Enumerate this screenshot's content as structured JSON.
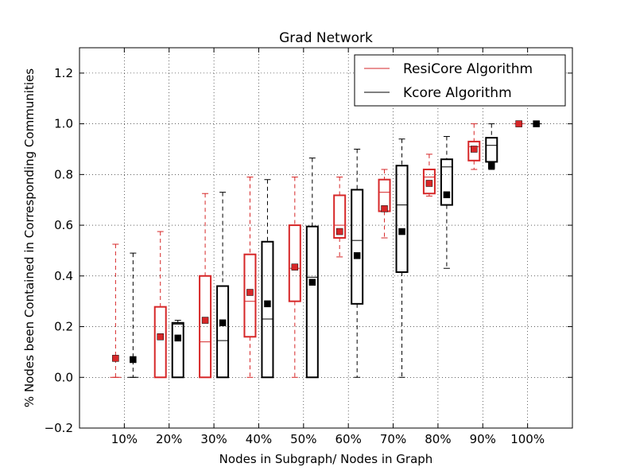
{
  "chart_data": {
    "type": "box",
    "title": "Grad Network",
    "xlabel": "Nodes in Subgraph/ Nodes in Graph",
    "ylabel": "% Nodes been Contained in Corresponding Communities",
    "categories": [
      "10%",
      "20%",
      "30%",
      "40%",
      "50%",
      "60%",
      "70%",
      "80%",
      "90%",
      "100%"
    ],
    "ylim": [
      -0.2,
      1.3
    ],
    "yticks": [
      -0.2,
      0.0,
      0.2,
      0.4,
      0.6,
      0.8,
      1.0,
      1.2
    ],
    "ytick_labels": [
      "−0.2",
      "0.0",
      "0.2",
      "0.4",
      "0.6",
      "0.8",
      "1.0",
      "1.2"
    ],
    "grid": true,
    "legend_position": "top-right",
    "series": [
      {
        "name": "ResiCore Algorithm",
        "color": "#d62728",
        "boxes": [
          {
            "whislo": 0.0,
            "q1": 0.0,
            "med": 0.0,
            "q3": 0.0,
            "whishi": 0.525,
            "mean": 0.075
          },
          {
            "whislo": 0.0,
            "q1": 0.0,
            "med": 0.0,
            "q3": 0.278,
            "whishi": 0.575,
            "mean": 0.16
          },
          {
            "whislo": 0.0,
            "q1": 0.0,
            "med": 0.14,
            "q3": 0.4,
            "whishi": 0.725,
            "mean": 0.225
          },
          {
            "whislo": 0.0,
            "q1": 0.16,
            "med": 0.3,
            "q3": 0.485,
            "whishi": 0.79,
            "mean": 0.335
          },
          {
            "whislo": 0.0,
            "q1": 0.3,
            "med": 0.43,
            "q3": 0.6,
            "whishi": 0.79,
            "mean": 0.435
          },
          {
            "whislo": 0.475,
            "q1": 0.55,
            "med": 0.6,
            "q3": 0.718,
            "whishi": 0.79,
            "mean": 0.575
          },
          {
            "whislo": 0.55,
            "q1": 0.655,
            "med": 0.73,
            "q3": 0.78,
            "whishi": 0.82,
            "mean": 0.665
          },
          {
            "whislo": 0.715,
            "q1": 0.725,
            "med": 0.79,
            "q3": 0.82,
            "whishi": 0.88,
            "mean": 0.765
          },
          {
            "whislo": 0.82,
            "q1": 0.855,
            "med": 0.91,
            "q3": 0.93,
            "whishi": 1.0,
            "mean": 0.9
          },
          {
            "whislo": 1.0,
            "q1": 1.0,
            "med": 1.0,
            "q3": 1.0,
            "whishi": 1.0,
            "mean": 1.0
          }
        ]
      },
      {
        "name": "Kcore Algorithm",
        "color": "#000000",
        "boxes": [
          {
            "whislo": 0.0,
            "q1": 0.0,
            "med": 0.0,
            "q3": 0.0,
            "whishi": 0.49,
            "mean": 0.07
          },
          {
            "whislo": 0.0,
            "q1": 0.0,
            "med": 0.21,
            "q3": 0.215,
            "whishi": 0.225,
            "mean": 0.155
          },
          {
            "whislo": 0.0,
            "q1": 0.0,
            "med": 0.145,
            "q3": 0.36,
            "whishi": 0.73,
            "mean": 0.215
          },
          {
            "whislo": 0.0,
            "q1": 0.0,
            "med": 0.23,
            "q3": 0.535,
            "whishi": 0.78,
            "mean": 0.29
          },
          {
            "whislo": 0.0,
            "q1": 0.0,
            "med": 0.395,
            "q3": 0.595,
            "whishi": 0.865,
            "mean": 0.375
          },
          {
            "whislo": 0.0,
            "q1": 0.29,
            "med": 0.54,
            "q3": 0.74,
            "whishi": 0.9,
            "mean": 0.48
          },
          {
            "whislo": 0.0,
            "q1": 0.415,
            "med": 0.68,
            "q3": 0.835,
            "whishi": 0.94,
            "mean": 0.575
          },
          {
            "whislo": 0.43,
            "q1": 0.68,
            "med": 0.83,
            "q3": 0.86,
            "whishi": 0.95,
            "mean": 0.72
          },
          {
            "whislo": 0.82,
            "q1": 0.85,
            "med": 0.915,
            "q3": 0.945,
            "whishi": 1.0,
            "mean": 0.835
          },
          {
            "whislo": 1.0,
            "q1": 1.0,
            "med": 1.0,
            "q3": 1.0,
            "whishi": 1.0,
            "mean": 1.0
          }
        ]
      }
    ]
  }
}
